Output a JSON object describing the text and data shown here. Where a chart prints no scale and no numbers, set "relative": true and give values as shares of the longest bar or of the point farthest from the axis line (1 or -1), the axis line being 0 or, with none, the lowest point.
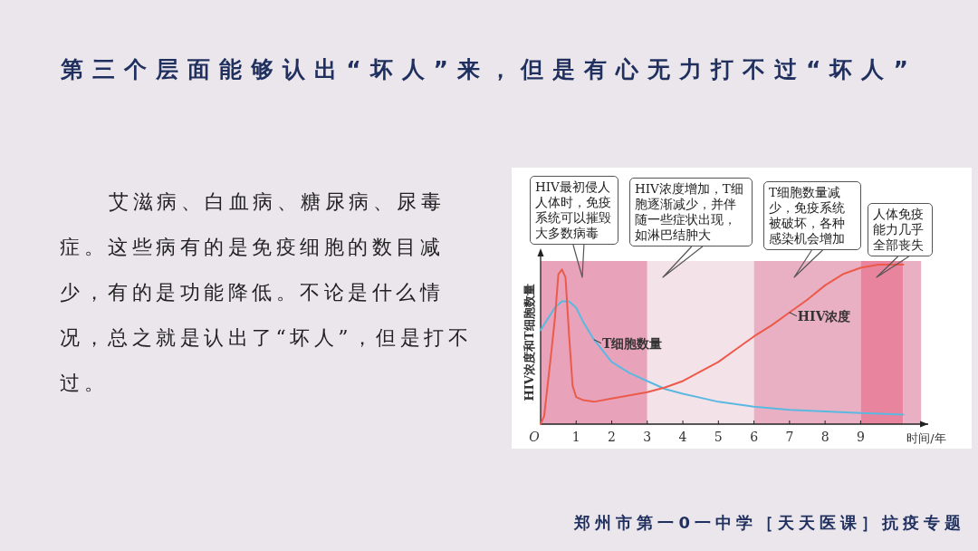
{
  "chart_data": {
    "type": "line",
    "title": "第三个层面能够认出“坏人”来，但是有心无力打不过“坏人”",
    "xlabel": "时间/年",
    "ylabel": "HIV浓度和T细胞数量",
    "relative": true,
    "legend": false,
    "xlim": [
      0,
      10.9
    ],
    "xticks": [
      {
        "value": 0,
        "label": "O"
      },
      1,
      2,
      3,
      4,
      5,
      6,
      7,
      8,
      9
    ],
    "series": [
      {
        "name": "T细胞数量",
        "color": "#5bb8e0",
        "x": [
          0,
          0.2,
          0.4,
          0.6,
          0.8,
          1,
          1.2,
          1.5,
          2,
          2.5,
          3,
          3.5,
          4,
          5,
          6,
          7,
          8,
          9,
          10.2
        ],
        "values": [
          0.59,
          0.66,
          0.73,
          0.77,
          0.77,
          0.73,
          0.64,
          0.53,
          0.39,
          0.32,
          0.27,
          0.22,
          0.19,
          0.14,
          0.11,
          0.09,
          0.08,
          0.07,
          0.06
        ]
      },
      {
        "name": "HIV浓度",
        "color": "#ec5a4a",
        "x": [
          0,
          0.1,
          0.2,
          0.3,
          0.4,
          0.5,
          0.6,
          0.7,
          0.8,
          0.9,
          1,
          1.2,
          1.5,
          2,
          2.5,
          3,
          3.5,
          4,
          4.5,
          5,
          5.5,
          6,
          6.5,
          7,
          7.5,
          8,
          8.5,
          9,
          9.5,
          10,
          10.2
        ],
        "values": [
          0,
          0.05,
          0.25,
          0.45,
          0.66,
          0.94,
          0.97,
          0.92,
          0.56,
          0.24,
          0.17,
          0.15,
          0.14,
          0.16,
          0.18,
          0.2,
          0.23,
          0.27,
          0.33,
          0.39,
          0.47,
          0.55,
          0.62,
          0.7,
          0.78,
          0.87,
          0.94,
          0.98,
          1.0,
          1.0,
          1.0
        ]
      }
    ],
    "bands": [
      {
        "axis": "x",
        "from": 0,
        "to": 3,
        "color": "#e8a3bb"
      },
      {
        "axis": "x",
        "from": 3,
        "to": 6,
        "color": "#f4e2e9"
      },
      {
        "axis": "x",
        "from": 6,
        "to": 9,
        "color": "#e9b0c4"
      },
      {
        "axis": "x",
        "from": 9,
        "to": 10.2,
        "color": "#e9849f"
      },
      {
        "axis": "x",
        "from": 10.2,
        "to": 10.7,
        "color": "#e9b0c4"
      }
    ],
    "annotations": [
      "HIV最初侵人人体时，免疫系统可以摧毁大多数病毒",
      "HIV浓度增加，T细胞逐渐减少，并伴随一些症状出现，如淋巴结肿大",
      "T细胞数量减少，免疫系统被破坏，各种感染机会增加",
      "人体免疫能力几乎全部丧失",
      "艾滋病、白血病、糖尿病、尿毒症。这些病有的是免疫细胞的数目减少，有的是功能降低。不论是什么情况，总之就是认出了“坏人”，但是打不过。",
      "郑州市第一0一中学［天天医课］抗疫专题"
    ]
  }
}
